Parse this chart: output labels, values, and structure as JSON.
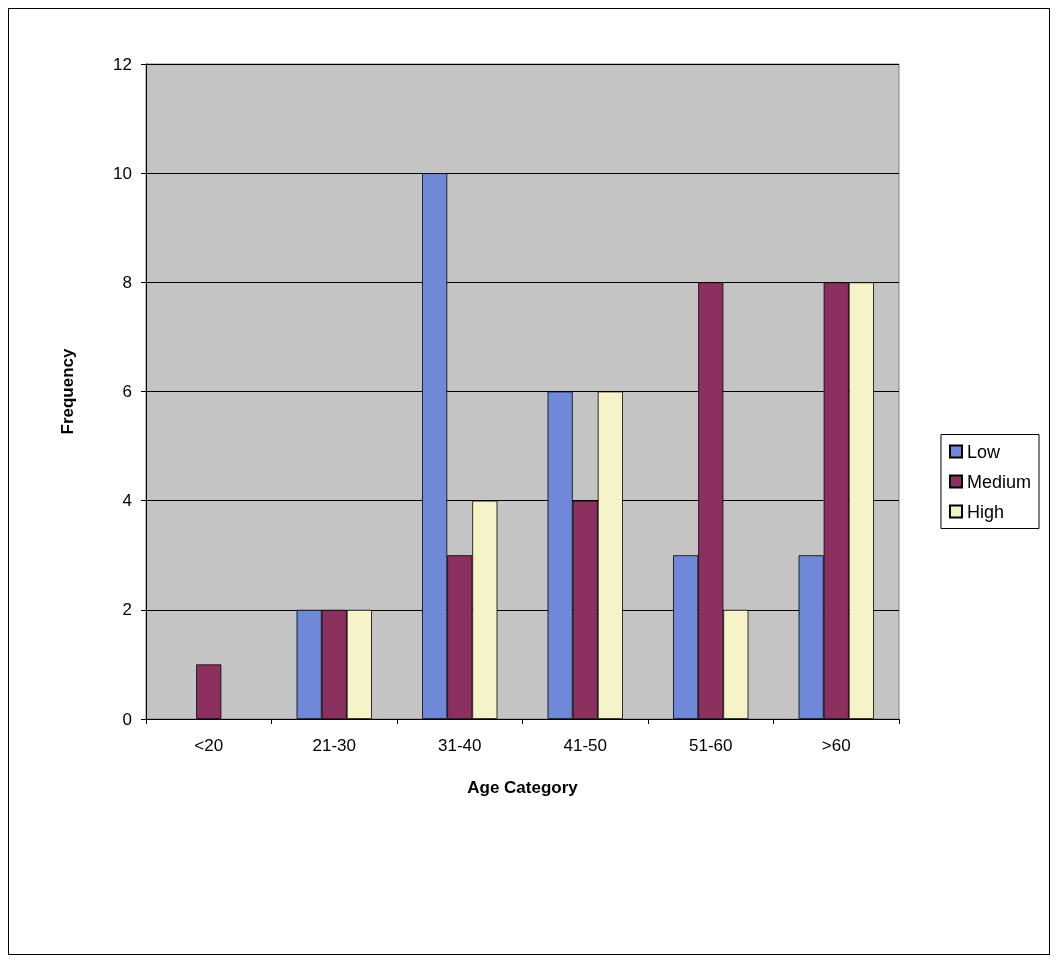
{
  "chart_data": {
    "type": "bar",
    "xlabel": "Age Category",
    "ylabel": "Frequency",
    "categories": [
      "<20",
      "21-30",
      "31-40",
      "41-50",
      "51-60",
      ">60"
    ],
    "series": [
      {
        "name": "Low",
        "color": "#7088d8",
        "values": [
          0,
          2,
          10,
          6,
          3,
          3
        ]
      },
      {
        "name": "Medium",
        "color": "#8c3060",
        "values": [
          1,
          2,
          3,
          4,
          8,
          8
        ]
      },
      {
        "name": "High",
        "color": "#f6f3c8",
        "values": [
          0,
          2,
          4,
          6,
          2,
          8
        ]
      }
    ],
    "ylim": [
      0,
      12
    ],
    "yticks": [
      0,
      2,
      4,
      6,
      8,
      10,
      12
    ],
    "grid": "y",
    "legend": "right"
  }
}
